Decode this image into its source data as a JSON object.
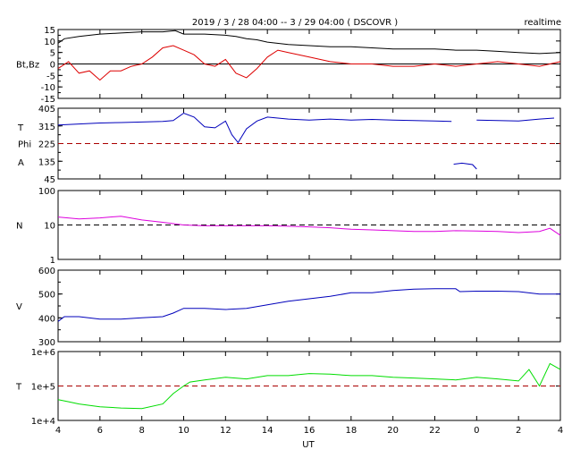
{
  "header": {
    "title": "2019 / 3 / 28   04:00 --  3 / 29  04:00 ( DSCOVR )",
    "mode": "realtime"
  },
  "chart_data": {
    "type": "line",
    "xlabel": "UT",
    "x_ticks": [
      "4",
      "6",
      "8",
      "10",
      "12",
      "14",
      "16",
      "18",
      "20",
      "22",
      "0",
      "2",
      "4"
    ],
    "xlim_hours": [
      4,
      28
    ],
    "panels": [
      {
        "id": "mag",
        "ylabel": "Bt,Bz",
        "ylim": [
          -15,
          15
        ],
        "yticks": [
          15,
          10,
          5,
          0,
          -5,
          -10,
          -15
        ],
        "zero_line": 0,
        "colors": {
          "Bt": "#000000",
          "Bz": "#dd0000",
          "ref": "#000000"
        },
        "series": [
          {
            "label": "Bt",
            "x": [
              4,
              4.3,
              5,
              6,
              7,
              8,
              9,
              9.6,
              10,
              10.5,
              11,
              12,
              12.5,
              13,
              13.5,
              14,
              15,
              16,
              17,
              18,
              19,
              20,
              21,
              22,
              23,
              24,
              25,
              26,
              27,
              28
            ],
            "y": [
              9,
              11,
              12,
              13,
              13.5,
              14,
              14,
              14.5,
              13,
              13,
              13,
              12.5,
              12,
              11,
              10.5,
              9.5,
              8.5,
              8,
              7.5,
              7.5,
              7,
              6.5,
              6.5,
              6.5,
              6,
              6,
              5.5,
              5,
              4.5,
              5
            ]
          },
          {
            "label": "Bz",
            "x": [
              4,
              4.5,
              5,
              5.5,
              6,
              6.5,
              7,
              7.5,
              8,
              8.5,
              9,
              9.5,
              10,
              10.5,
              11,
              11.5,
              12,
              12.5,
              13,
              13.5,
              14,
              14.5,
              15,
              16,
              17,
              18,
              19,
              20,
              21,
              22,
              23,
              24,
              25,
              26,
              27,
              28
            ],
            "y": [
              -2,
              1,
              -4,
              -3,
              -7,
              -3,
              -3,
              -1,
              0,
              3,
              7,
              8,
              6,
              4,
              0,
              -1,
              2,
              -4,
              -6,
              -2,
              3,
              6,
              5,
              3,
              1,
              0,
              0,
              -1,
              -1,
              0,
              -1,
              0,
              1,
              0,
              -1,
              1
            ]
          }
        ]
      },
      {
        "id": "angle",
        "ylabels": [
          "T",
          "Phi",
          "A"
        ],
        "ylim": [
          45,
          405
        ],
        "yticks": [
          405,
          315,
          225,
          135,
          45
        ],
        "ref_line": 225,
        "colors": {
          "Phi": "#0000bb",
          "ref": "#aa0000"
        },
        "series": [
          {
            "label": "Phi",
            "x": [
              4,
              5,
              6,
              7,
              8,
              9,
              9.5,
              10,
              10.5,
              11,
              11.5,
              12,
              12.3,
              12.6,
              13,
              13.5,
              14,
              15,
              16,
              17,
              18,
              19,
              20,
              21,
              22,
              22.8
            ],
            "y": [
              320,
              325,
              330,
              332,
              335,
              338,
              342,
              380,
              360,
              310,
              305,
              340,
              270,
              230,
              300,
              340,
              360,
              350,
              345,
              350,
              345,
              348,
              345,
              342,
              340,
              338
            ]
          },
          {
            "label": "Phi",
            "x": [
              24,
              25,
              26,
              27,
              27.7
            ],
            "y": [
              345,
              342,
              340,
              350,
              355
            ]
          },
          {
            "label": "Phi",
            "x": [
              22.9,
              23.3,
              23.8,
              24
            ],
            "y": [
              120,
              125,
              118,
              95
            ]
          }
        ]
      },
      {
        "id": "density",
        "ylabel": "N",
        "scale": "log",
        "ylim": [
          1,
          100
        ],
        "yticks": [
          100,
          10,
          1
        ],
        "ref_line": 10,
        "colors": {
          "N": "#dd00dd",
          "ref": "#000000"
        },
        "series": [
          {
            "label": "N",
            "x": [
              4,
              5,
              6,
              7,
              8,
              9,
              10,
              11,
              12,
              13,
              14,
              15,
              16,
              17,
              18,
              19,
              20,
              21,
              22,
              23,
              24,
              25,
              26,
              27,
              27.5,
              28
            ],
            "y": [
              17,
              15,
              16,
              18,
              14,
              12,
              10,
              9.5,
              9.5,
              9.5,
              9.5,
              9.2,
              8.8,
              8.3,
              7.5,
              7.2,
              6.8,
              6.5,
              6.5,
              6.8,
              6.7,
              6.5,
              6.0,
              6.5,
              8.0,
              5.0
            ]
          }
        ]
      },
      {
        "id": "speed",
        "ylabel": "V",
        "ylim": [
          300,
          600
        ],
        "yticks": [
          600,
          500,
          400,
          300
        ],
        "colors": {
          "V": "#0000bb"
        },
        "series": [
          {
            "label": "V",
            "x": [
              4,
              4.3,
              5,
              6,
              7,
              8,
              9,
              9.5,
              10,
              11,
              12,
              13,
              14,
              15,
              16,
              17,
              18,
              19,
              20,
              21,
              22,
              23,
              23.2,
              24,
              25,
              26,
              27,
              28
            ],
            "y": [
              385,
              405,
              405,
              395,
              395,
              400,
              405,
              420,
              440,
              440,
              435,
              440,
              455,
              470,
              480,
              490,
              505,
              505,
              515,
              520,
              522,
              522,
              510,
              512,
              512,
              510,
              500,
              500
            ]
          }
        ]
      },
      {
        "id": "temperature",
        "ylabel": "T",
        "scale": "log",
        "ylim": [
          10000,
          1000000
        ],
        "ytick_labels": [
          "1e+6",
          "1e+5",
          "1e+4"
        ],
        "yticks": [
          1000000,
          100000,
          10000
        ],
        "ref_line": 100000,
        "colors": {
          "T": "#00dd00",
          "ref": "#aa0000"
        },
        "series": [
          {
            "label": "T",
            "x": [
              4,
              4.5,
              5,
              6,
              7,
              8,
              9,
              9.5,
              10,
              10.3,
              11,
              12,
              13,
              14,
              15,
              16,
              17,
              18,
              19,
              20,
              21,
              22,
              23,
              24,
              25,
              26,
              26.5,
              27,
              27.5,
              28
            ],
            "y": [
              40000,
              35000,
              30000,
              25000,
              23000,
              22000,
              30000,
              60000,
              100000,
              130000,
              150000,
              180000,
              160000,
              200000,
              200000,
              230000,
              220000,
              200000,
              200000,
              180000,
              170000,
              160000,
              150000,
              180000,
              160000,
              140000,
              300000,
              100000,
              450000,
              300000
            ]
          }
        ]
      }
    ]
  }
}
